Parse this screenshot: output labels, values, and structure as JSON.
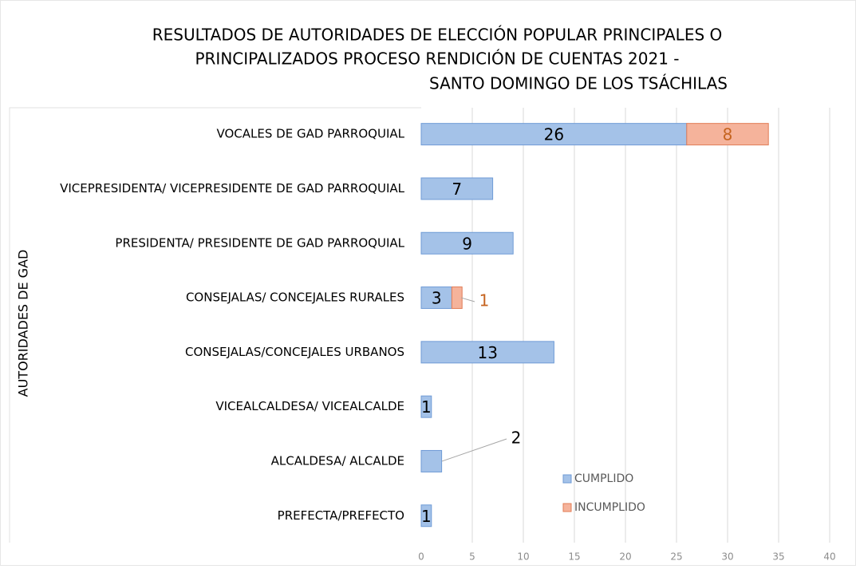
{
  "chart_data": {
    "type": "stacked_barh",
    "title": [
      "RESULTADOS DE AUTORIDADES DE ELECCIÓN POPULAR PRINCIPALES O",
      "PRINCIPALIZADOS PROCESO RENDICIÓN DE CUENTAS 2021 -",
      "SANTO DOMINGO DE LOS TSÁCHILAS"
    ],
    "y_label": "AUTORIDADES DE GAD",
    "categories": [
      "VOCALES DE GAD PARROQUIAL",
      "VICEPRESIDENTA/ VICEPRESIDENTE DE GAD PARROQUIAL",
      "PRESIDENTA/ PRESIDENTE DE GAD PARROQUIAL",
      "CONSEJALAS/ CONCEJALES RURALES",
      "CONSEJALAS/CONCEJALES URBANOS",
      "VICEALCALDESA/ VICEALCALDE",
      "ALCALDESA/ ALCALDE",
      "PREFECTA/PREFECTO"
    ],
    "series": [
      {
        "name": "CUMPLIDO",
        "color": "#a4c2e8",
        "values": [
          26,
          7,
          9,
          3,
          13,
          1,
          2,
          1
        ]
      },
      {
        "name": "INCUMPLIDO",
        "color": "#f5b39b",
        "values": [
          8,
          null,
          null,
          1,
          null,
          null,
          null,
          null
        ]
      }
    ],
    "xlim": [
      0,
      40
    ],
    "xticks": [
      0,
      5,
      10,
      15,
      20,
      25,
      30,
      35,
      40
    ],
    "grid": true,
    "legend": "right"
  }
}
